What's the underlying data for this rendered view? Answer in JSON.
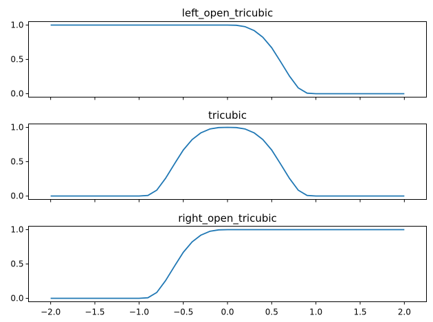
{
  "chart_data": [
    {
      "type": "line",
      "title": "left_open_tricubic",
      "xlim": [
        -2.25,
        2.25
      ],
      "ylim": [
        -0.05,
        1.05
      ],
      "xticks": [
        -2.0,
        -1.5,
        -1.0,
        -0.5,
        0.0,
        0.5,
        1.0,
        1.5,
        2.0
      ],
      "xtick_labels_visible": false,
      "yticks": [
        0.0,
        0.5,
        1.0
      ],
      "ytick_labels": [
        "0.0",
        "0.5",
        "1.0"
      ],
      "series": [
        {
          "color": "#1f77b4",
          "x": [
            -2.0,
            -1.0,
            0.0,
            0.1,
            0.2,
            0.3,
            0.4,
            0.5,
            0.6,
            0.7,
            0.8,
            0.9,
            1.0,
            1.5,
            2.0
          ],
          "y": [
            1.0,
            1.0,
            1.0,
            0.997,
            0.976,
            0.921,
            0.822,
            0.67,
            0.467,
            0.258,
            0.085,
            0.008,
            0.0,
            0.0,
            0.0
          ]
        }
      ]
    },
    {
      "type": "line",
      "title": "tricubic",
      "xlim": [
        -2.25,
        2.25
      ],
      "ylim": [
        -0.05,
        1.05
      ],
      "xticks": [
        -2.0,
        -1.5,
        -1.0,
        -0.5,
        0.0,
        0.5,
        1.0,
        1.5,
        2.0
      ],
      "xtick_labels_visible": false,
      "yticks": [
        0.0,
        0.5,
        1.0
      ],
      "ytick_labels": [
        "0.0",
        "0.5",
        "1.0"
      ],
      "series": [
        {
          "color": "#1f77b4",
          "x": [
            -2.0,
            -1.5,
            -1.0,
            -0.9,
            -0.8,
            -0.7,
            -0.6,
            -0.5,
            -0.4,
            -0.3,
            -0.2,
            -0.1,
            0.0,
            0.1,
            0.2,
            0.3,
            0.4,
            0.5,
            0.6,
            0.7,
            0.8,
            0.9,
            1.0,
            1.5,
            2.0
          ],
          "y": [
            0.0,
            0.0,
            0.0,
            0.008,
            0.085,
            0.258,
            0.467,
            0.67,
            0.822,
            0.921,
            0.976,
            0.997,
            1.0,
            0.997,
            0.976,
            0.921,
            0.822,
            0.67,
            0.467,
            0.258,
            0.085,
            0.008,
            0.0,
            0.0,
            0.0
          ]
        }
      ]
    },
    {
      "type": "line",
      "title": "right_open_tricubic",
      "xlim": [
        -2.25,
        2.25
      ],
      "ylim": [
        -0.05,
        1.05
      ],
      "xticks": [
        -2.0,
        -1.5,
        -1.0,
        -0.5,
        0.0,
        0.5,
        1.0,
        1.5,
        2.0
      ],
      "xtick_labels_visible": true,
      "xtick_labels": [
        "−2.0",
        "−1.5",
        "−1.0",
        "−0.5",
        "0.0",
        "0.5",
        "1.0",
        "1.5",
        "2.0"
      ],
      "yticks": [
        0.0,
        0.5,
        1.0
      ],
      "ytick_labels": [
        "0.0",
        "0.5",
        "1.0"
      ],
      "series": [
        {
          "color": "#1f77b4",
          "x": [
            -2.0,
            -1.5,
            -1.0,
            -0.9,
            -0.8,
            -0.7,
            -0.6,
            -0.5,
            -0.4,
            -0.3,
            -0.2,
            -0.1,
            0.0,
            1.0,
            2.0
          ],
          "y": [
            0.0,
            0.0,
            0.0,
            0.008,
            0.085,
            0.258,
            0.467,
            0.67,
            0.822,
            0.921,
            0.976,
            0.997,
            1.0,
            1.0,
            1.0
          ]
        }
      ]
    }
  ]
}
